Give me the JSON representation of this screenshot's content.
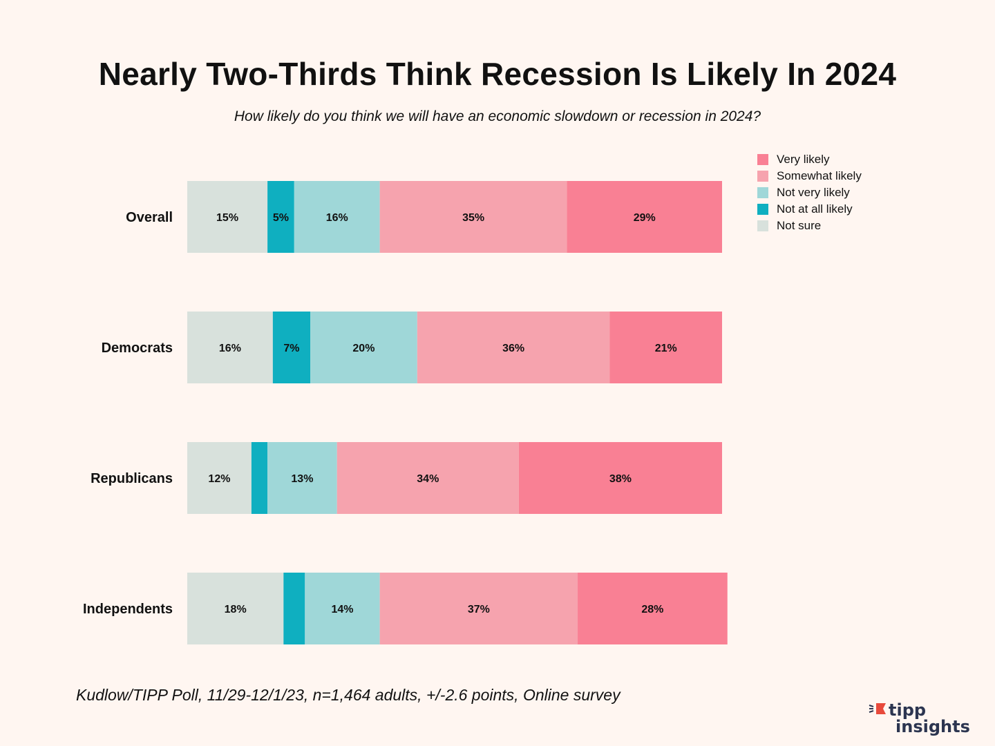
{
  "title": "Nearly Two-Thirds Think Recession Is Likely In 2024",
  "subtitle": "How likely do you think we will have an economic slowdown or recession in 2024?",
  "footer": "Kudlow/TIPP Poll, 11/29-12/1/23, n=1,464 adults, +/-2.6 points, Online survey",
  "logo": {
    "line1": "tipp",
    "line2": "insights",
    "accent_color": "#e84a3c",
    "text_color": "#2c3550"
  },
  "chart_data": {
    "type": "bar",
    "orientation": "horizontal",
    "stacked": true,
    "title": "Nearly Two-Thirds Think Recession Is Likely In 2024",
    "subtitle": "How likely do you think we will have an economic slowdown or recession in 2024?",
    "xlabel": "",
    "ylabel": "",
    "xlim": [
      0,
      100
    ],
    "grid": false,
    "legend_position": "top-right",
    "categories": [
      "Overall",
      "Democrats",
      "Republicans",
      "Independents"
    ],
    "series": [
      {
        "name": "Not sure",
        "color": "#d8e1dc",
        "values": [
          15,
          16,
          12,
          18
        ],
        "labels": [
          "15%",
          "16%",
          "12%",
          "18%"
        ]
      },
      {
        "name": "Not at all likely",
        "color": "#0fafc0",
        "values": [
          5,
          7,
          3,
          4
        ],
        "labels": [
          "5%",
          "7%",
          "",
          ""
        ]
      },
      {
        "name": "Not very likely",
        "color": "#9fd7d8",
        "values": [
          16,
          20,
          13,
          14
        ],
        "labels": [
          "16%",
          "20%",
          "13%",
          "14%"
        ]
      },
      {
        "name": "Somewhat likely",
        "color": "#f6a3ae",
        "values": [
          35,
          36,
          34,
          37
        ],
        "labels": [
          "35%",
          "36%",
          "34%",
          "37%"
        ]
      },
      {
        "name": "Very likely",
        "color": "#f98094",
        "values": [
          29,
          21,
          38,
          28
        ],
        "labels": [
          "29%",
          "21%",
          "38%",
          "28%"
        ]
      }
    ],
    "legend_order": [
      "Very likely",
      "Somewhat likely",
      "Not very likely",
      "Not at all likely",
      "Not sure"
    ]
  }
}
